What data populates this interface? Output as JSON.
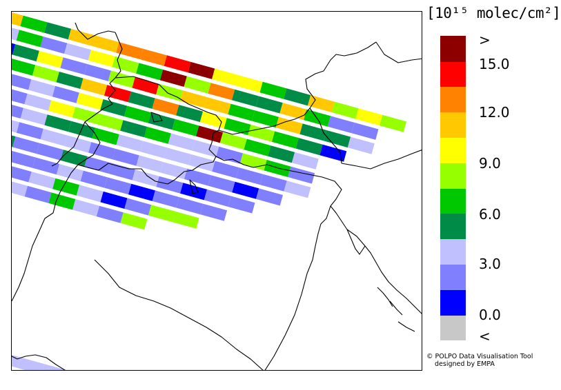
{
  "legend": {
    "title": "[10¹⁵ molec/cm²]",
    "bins": [
      {
        "color": "#c8c8c8"
      },
      {
        "color": "#0000ff"
      },
      {
        "color": "#8080ff"
      },
      {
        "color": "#c0c0ff"
      },
      {
        "color": "#008c46"
      },
      {
        "color": "#00c800"
      },
      {
        "color": "#96ff00"
      },
      {
        "color": "#ffff00"
      },
      {
        "color": "#ffc800"
      },
      {
        "color": "#ff8200"
      },
      {
        "color": "#ff0000"
      },
      {
        "color": "#8c0000"
      }
    ],
    "labels": [
      ">",
      "15.0",
      "12.0",
      "9.0",
      "6.0",
      "3.0",
      "0.0",
      "<"
    ]
  },
  "credits": {
    "line1": "© POLPO Data Visualisation Tool",
    "line2": "designed by EMPA"
  },
  "map": {
    "swath_rows": [
      [
        8,
        5,
        4,
        8,
        8,
        9,
        9,
        10,
        11,
        7,
        7,
        5,
        4,
        8,
        6,
        7,
        6
      ],
      [
        3,
        5,
        2,
        3,
        7,
        6,
        5,
        11,
        6,
        9,
        4,
        4,
        8,
        5,
        2,
        2
      ],
      [
        1,
        4,
        7,
        2,
        2,
        6,
        10,
        6,
        8,
        8,
        5,
        5,
        8,
        4,
        4,
        3
      ],
      [
        2,
        5,
        6,
        4,
        8,
        10,
        4,
        9,
        4,
        7,
        5,
        6,
        5,
        4,
        1
      ],
      [
        2,
        2,
        3,
        2,
        7,
        4,
        5,
        4,
        5,
        11,
        6,
        5,
        4,
        3
      ],
      [
        4,
        2,
        3,
        7,
        6,
        6,
        4,
        5,
        3,
        3,
        2,
        6,
        5,
        2
      ],
      [
        2,
        2,
        3,
        4,
        4,
        5,
        3,
        3,
        3,
        3,
        2,
        2,
        2,
        3
      ],
      [
        3,
        3,
        2,
        3,
        3,
        2,
        2,
        3,
        3,
        2,
        2,
        1,
        2
      ],
      [
        3,
        4,
        2,
        2,
        4,
        2,
        2,
        3,
        2,
        1,
        2,
        2
      ],
      [
        3,
        3,
        2,
        2,
        3,
        2,
        2,
        1,
        2,
        2,
        2
      ],
      [
        2,
        2,
        2,
        3,
        5,
        3,
        1,
        2,
        6,
        6
      ],
      [
        2,
        3,
        3,
        2,
        5,
        3,
        2,
        6
      ]
    ],
    "bottom_swath": [
      3,
      3,
      3,
      3,
      3,
      3
    ]
  }
}
